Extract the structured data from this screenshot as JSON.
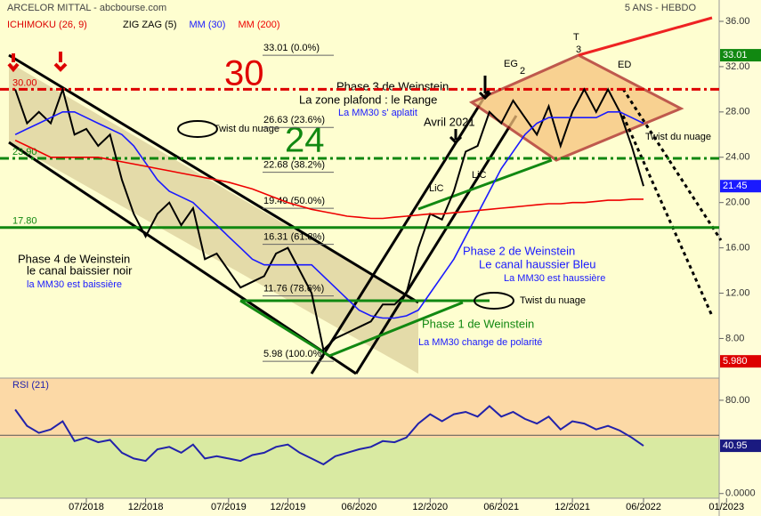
{
  "chart_data": [
    {
      "type": "line",
      "title": "ARCELOR MITTAL - abcbourse.com",
      "subtitle": "5 ANS - HEBDO",
      "indicator_label": "ICHIMOKU (26, 9)",
      "indicator_color": "#dd0000",
      "x": [
        "01/2018",
        "02/2018",
        "03/2018",
        "04/2018",
        "05/2018",
        "06/2018",
        "07/2018",
        "08/2018",
        "09/2018",
        "10/2018",
        "11/2018",
        "12/2018",
        "01/2019",
        "02/2019",
        "03/2019",
        "04/2019",
        "05/2019",
        "06/2019",
        "07/2019",
        "08/2019",
        "09/2019",
        "10/2019",
        "11/2019",
        "12/2019",
        "01/2020",
        "02/2020",
        "03/2020",
        "04/2020",
        "05/2020",
        "06/2020",
        "07/2020",
        "08/2020",
        "09/2020",
        "10/2020",
        "11/2020",
        "12/2020",
        "01/2021",
        "02/2021",
        "03/2021",
        "04/2021",
        "05/2021",
        "06/2021",
        "07/2021",
        "08/2021",
        "09/2021",
        "10/2021",
        "11/2021",
        "12/2021",
        "01/2022",
        "02/2022",
        "03/2022",
        "04/2022",
        "05/2022",
        "06/2022"
      ],
      "xticks": [
        "07/2018",
        "12/2018",
        "07/2019",
        "12/2019",
        "06/2020",
        "12/2020",
        "06/2021",
        "12/2021",
        "06/2022",
        "01/2023"
      ],
      "ylim": [
        4.5,
        37.1
      ],
      "yticks": [
        {
          "value": 8,
          "label": "8.00"
        },
        {
          "value": 12,
          "label": "12.00"
        },
        {
          "value": 16,
          "label": "16.00"
        },
        {
          "value": 20,
          "label": "20.00"
        },
        {
          "value": 24,
          "label": "24.00"
        },
        {
          "value": 28,
          "label": "28.00"
        },
        {
          "value": 32,
          "label": "32.00"
        },
        {
          "value": 36,
          "label": "36.00"
        }
      ],
      "series": [
        {
          "name": "ZIG ZAG (5)",
          "color": "#000000",
          "values": [
            30,
            27,
            28,
            27,
            30,
            26,
            26.5,
            25,
            26,
            22,
            19,
            17,
            19,
            20,
            18,
            19.5,
            15,
            15.5,
            14,
            12.5,
            13,
            13.5,
            15.5,
            16,
            14,
            12,
            7,
            8,
            8.5,
            9,
            9.5,
            11,
            11,
            12,
            16,
            19,
            18.5,
            21,
            24.5,
            25,
            28,
            27,
            29,
            27.5,
            26,
            28.5,
            25,
            28,
            30,
            28,
            30,
            28,
            25,
            21.45
          ]
        },
        {
          "name": "MM (30)",
          "color": "#1a1aff",
          "values": [
            26,
            26.5,
            27,
            27.5,
            28,
            28,
            27.5,
            27,
            26.5,
            26,
            25,
            23.5,
            22,
            21,
            20.5,
            20,
            19,
            18,
            17,
            16,
            15,
            14.5,
            14.5,
            14.5,
            14.5,
            14.5,
            13.5,
            12.5,
            11.5,
            10.5,
            10,
            9.8,
            9.8,
            10,
            10.5,
            12,
            13.5,
            15,
            17,
            19,
            21,
            23,
            24.5,
            26,
            27,
            27.5,
            27.5,
            27.5,
            27.5,
            27.5,
            28,
            28,
            27.5,
            27
          ]
        },
        {
          "name": "MM (200)",
          "color": "#ee0000",
          "values": [
            25.5,
            25,
            24.5,
            24,
            24,
            24,
            24,
            24,
            23.8,
            23.6,
            23.4,
            23.2,
            23,
            22.8,
            22.6,
            22.4,
            22.2,
            22,
            21.8,
            21.5,
            21.2,
            20.8,
            20.4,
            20,
            19.7,
            19.4,
            19.2,
            19,
            18.8,
            18.7,
            18.6,
            18.6,
            18.7,
            18.8,
            18.9,
            19,
            19,
            19.1,
            19.2,
            19.3,
            19.4,
            19.5,
            19.6,
            19.7,
            19.8,
            19.9,
            19.9,
            20,
            20,
            20.1,
            20.2,
            20.2,
            20.3,
            20.3
          ]
        }
      ],
      "levels": [
        {
          "value": 30,
          "label": "30.00",
          "color": "#dd0000",
          "dash": true
        },
        {
          "value": 23.9,
          "label": "23.90",
          "color": "#118811",
          "dash": true
        },
        {
          "value": 17.8,
          "label": "17.80",
          "color": "#118811",
          "dash": false
        }
      ],
      "fib_levels": [
        {
          "value": 33.01,
          "label": "33.01 (0.0%)"
        },
        {
          "value": 26.63,
          "label": "26.63 (23.6%)"
        },
        {
          "value": 22.68,
          "label": "22.68 (38.2%)"
        },
        {
          "value": 19.49,
          "label": "19.49 (50.0%)"
        },
        {
          "value": 16.31,
          "label": "16.31 (61.8%)"
        },
        {
          "value": 11.76,
          "label": "11.76 (78.6%)"
        },
        {
          "value": 5.98,
          "label": "5.98 (100.0%)"
        }
      ],
      "low_tag": {
        "value": 5.98,
        "label": "5.980"
      },
      "annotations": [
        "Phase 3 de Weinstein",
        "La zone plafond : le Range",
        "La MM30 s' aplatit",
        "Avril 2021",
        "Twist du nuage",
        "Twist du nuage",
        "Twist du nuage",
        "30",
        "24",
        "Phase 4 de Weinstein",
        "le canal baissier noir",
        "la MM30 est baissière",
        "Phase 2 de Weinstein",
        "Le canal haussier Bleu",
        "La MM30 est haussière",
        "Phase 1 de Weinstein",
        "La MM30 change de polarité",
        "EG",
        "2",
        "T",
        "3",
        "ED",
        "LiC",
        "LiC"
      ]
    },
    {
      "type": "line",
      "title": "RSI (21)",
      "ylim": [
        -4,
        99
      ],
      "yticks": [
        {
          "value": 0,
          "label": "0.0000"
        },
        {
          "value": 80,
          "label": "80.00"
        }
      ],
      "hline": 50,
      "series": [
        {
          "name": "RSI (21)",
          "color": "#2222aa",
          "values": [
            72,
            58,
            52,
            55,
            62,
            45,
            48,
            44,
            46,
            35,
            30,
            28,
            38,
            40,
            35,
            42,
            30,
            32,
            30,
            28,
            33,
            35,
            40,
            42,
            35,
            30,
            25,
            32,
            35,
            38,
            40,
            45,
            44,
            48,
            60,
            68,
            62,
            68,
            70,
            66,
            75,
            66,
            70,
            64,
            60,
            66,
            55,
            62,
            60,
            55,
            58,
            54,
            48,
            40.95
          ]
        }
      ]
    }
  ]
}
